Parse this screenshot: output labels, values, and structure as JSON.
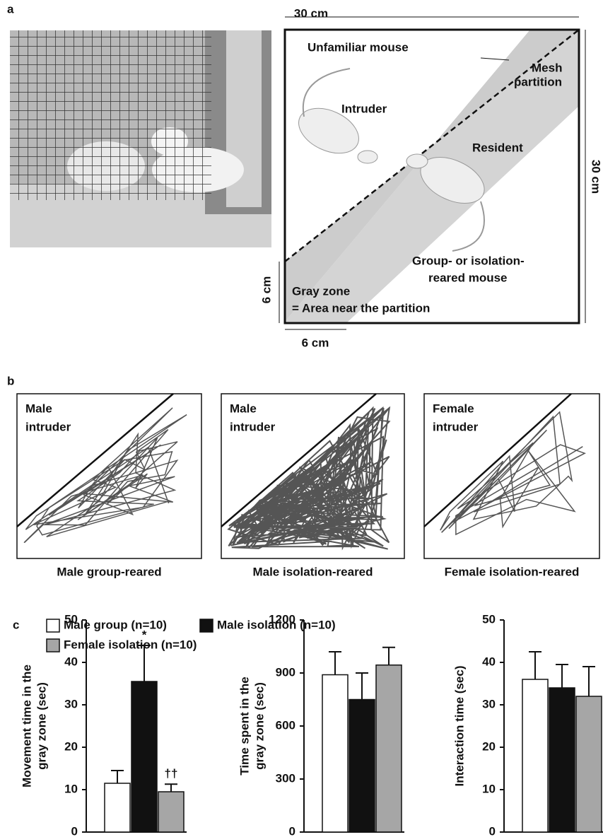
{
  "panel_labels": [
    "a",
    "b",
    "c"
  ],
  "diagram": {
    "width_label": "30 cm",
    "height_label": "30 cm",
    "unfamiliar": "Unfamiliar mouse",
    "intruder": "Intruder",
    "resident": "Resident",
    "mesh": [
      "Mesh",
      "partition"
    ],
    "group": [
      "Group- or isolation-",
      "reared mouse"
    ],
    "gray_zone": [
      "Gray zone",
      "= Area near the partition"
    ],
    "zone_v": "6 cm",
    "zone_h": "6 cm"
  },
  "trajectories": [
    {
      "title": [
        "Male",
        "intruder"
      ],
      "caption": "Male group-reared"
    },
    {
      "title": [
        "Male",
        "intruder"
      ],
      "caption": "Male isolation-reared"
    },
    {
      "title": [
        "Female",
        "intruder"
      ],
      "caption": "Female isolation-reared"
    }
  ],
  "chart_data": [
    {
      "type": "bar",
      "ylabel": [
        "Movement time in the",
        "gray zone (sec)"
      ],
      "ylim": [
        0,
        50
      ],
      "yticks": [
        0,
        10,
        20,
        30,
        40,
        50
      ],
      "series": [
        {
          "name": "Male group (n=10)",
          "color": "#ffffff",
          "values": [
            11.5
          ],
          "errors": [
            3
          ]
        },
        {
          "name": "Male isolation (n=10)",
          "color": "#111111",
          "values": [
            35.5
          ],
          "errors": [
            8.5
          ],
          "annotation": "*"
        },
        {
          "name": "Female isolation (n=10)",
          "color": "#a6a6a6",
          "values": [
            9.5
          ],
          "errors": [
            1.8
          ],
          "annotation": "††"
        }
      ]
    },
    {
      "type": "bar",
      "ylabel": [
        "Time spent in the",
        "gray zone (sec)"
      ],
      "ylim": [
        0,
        1200
      ],
      "yticks": [
        0,
        300,
        600,
        900,
        1200
      ],
      "series": [
        {
          "name": "Male group (n=10)",
          "color": "#ffffff",
          "values": [
            890
          ],
          "errors": [
            130
          ]
        },
        {
          "name": "Male isolation (n=10)",
          "color": "#111111",
          "values": [
            750
          ],
          "errors": [
            150
          ]
        },
        {
          "name": "Female isolation (n=10)",
          "color": "#a6a6a6",
          "values": [
            945
          ],
          "errors": [
            100
          ]
        }
      ]
    },
    {
      "type": "bar",
      "ylabel": [
        "Interaction time (sec)"
      ],
      "ylim": [
        0,
        50
      ],
      "yticks": [
        0,
        10,
        20,
        30,
        40,
        50
      ],
      "series": [
        {
          "name": "Male group (n=10)",
          "color": "#ffffff",
          "values": [
            36
          ],
          "errors": [
            6.5
          ]
        },
        {
          "name": "Male isolation (n=10)",
          "color": "#111111",
          "values": [
            34
          ],
          "errors": [
            5.5
          ]
        },
        {
          "name": "Female isolation (n=10)",
          "color": "#a6a6a6",
          "values": [
            32
          ],
          "errors": [
            7
          ]
        }
      ]
    }
  ]
}
